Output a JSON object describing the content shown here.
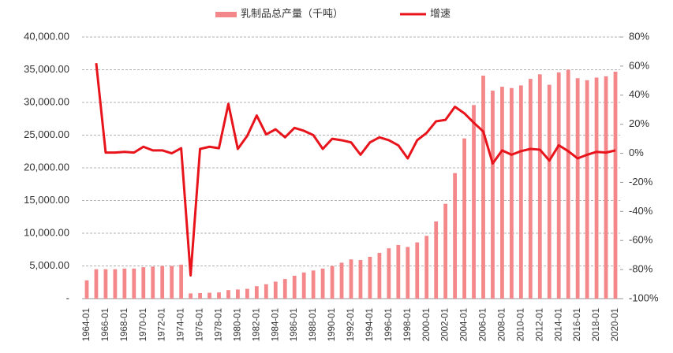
{
  "chart_data": {
    "type": "bar_line",
    "categories": [
      "1964-01",
      null,
      "1966-01",
      null,
      "1968-01",
      null,
      "1970-01",
      null,
      "1972-01",
      null,
      "1974-01",
      null,
      "1976-01",
      null,
      "1978-01",
      null,
      "1980-01",
      null,
      "1982-01",
      null,
      "1984-01",
      null,
      "1986-01",
      null,
      "1988-01",
      null,
      "1990-01",
      null,
      "1992-01",
      null,
      "1994-01",
      null,
      "1996-01",
      null,
      "1998-01",
      null,
      "2000-01",
      null,
      "2002-01",
      null,
      "2004-01",
      null,
      "2006-01",
      null,
      "2008-01",
      null,
      "2010-01",
      null,
      "2012-01",
      null,
      "2014-01",
      null,
      "2016-01",
      null,
      "2018-01",
      null,
      "2020-01"
    ],
    "series": [
      {
        "name": "乳制品总产量（千吨）",
        "color": "#f4878a",
        "values": [
          2800,
          4500,
          4500,
          4500,
          4600,
          4600,
          4800,
          4900,
          5000,
          5000,
          5200,
          800,
          850,
          900,
          950,
          1300,
          1400,
          1500,
          1900,
          2200,
          2600,
          3000,
          3500,
          4000,
          4300,
          4600,
          5000,
          5500,
          6000,
          5900,
          6400,
          7000,
          7700,
          8200,
          7900,
          8600,
          9600,
          11800,
          14500,
          19200,
          24500,
          29600,
          34100,
          31800,
          32400,
          32200,
          32600,
          33600,
          34300,
          32700,
          34600,
          35000,
          33700,
          33400,
          33800,
          34000,
          34700
        ]
      },
      {
        "name": "增速",
        "color": "#e8141c",
        "axis": "y2",
        "values": [
          null,
          62,
          0.5,
          0.5,
          1,
          0.5,
          4.5,
          2,
          2,
          0,
          3.5,
          -84,
          3,
          4.5,
          3.5,
          34,
          3,
          12,
          26,
          13,
          16.5,
          11,
          17.5,
          15.5,
          12.5,
          3,
          10,
          9,
          7.5,
          -1,
          7.5,
          11,
          9,
          5.5,
          -3.5,
          9,
          14,
          22,
          23,
          32,
          27.5,
          21,
          15,
          -7,
          2,
          -1,
          1.5,
          3,
          2.5,
          -5,
          5.5,
          1.5,
          -3.5,
          -1,
          1,
          0.5,
          2
        ]
      }
    ],
    "ylim": [
      0,
      40000
    ],
    "yticks": [
      {
        "value": 0,
        "label": "-"
      },
      {
        "value": 5000,
        "label": "5,000.00"
      },
      {
        "value": 10000,
        "label": "10,000.00"
      },
      {
        "value": 15000,
        "label": "15,000.00"
      },
      {
        "value": 20000,
        "label": "20,000.00"
      },
      {
        "value": 25000,
        "label": "25,000.00"
      },
      {
        "value": 30000,
        "label": "30,000.00"
      },
      {
        "value": 35000,
        "label": "35,000.00"
      },
      {
        "value": 40000,
        "label": "40,000.00"
      }
    ],
    "y2lim": [
      -100,
      80
    ],
    "y2ticks": [
      {
        "value": -100,
        "label": "-100%"
      },
      {
        "value": -80,
        "label": "-80%"
      },
      {
        "value": -60,
        "label": "-60%"
      },
      {
        "value": -40,
        "label": "-40%"
      },
      {
        "value": -20,
        "label": "-20%"
      },
      {
        "value": 0,
        "label": "0%"
      },
      {
        "value": 20,
        "label": "20%"
      },
      {
        "value": 40,
        "label": "40%"
      },
      {
        "value": 60,
        "label": "60%"
      },
      {
        "value": 80,
        "label": "80%"
      }
    ],
    "grid": true,
    "legend": "top"
  }
}
